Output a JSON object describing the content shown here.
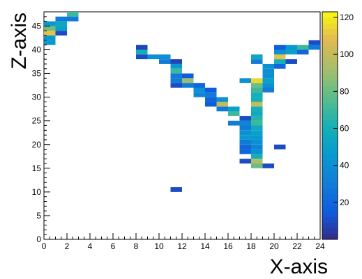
{
  "chart_data": {
    "type": "heatmap",
    "xlabel": "X-axis",
    "ylabel": "Z-axis",
    "x_range": [
      0,
      24
    ],
    "y_range": [
      0,
      48
    ],
    "x_bin_width": 1,
    "y_bin_width": 1,
    "x_ticks": [
      0,
      2,
      4,
      6,
      8,
      10,
      12,
      14,
      16,
      18,
      20,
      22,
      24
    ],
    "y_ticks": [
      0,
      5,
      10,
      15,
      20,
      25,
      30,
      35,
      40,
      45
    ],
    "colorbar": {
      "range": [
        0,
        123
      ],
      "ticks": [
        20,
        40,
        60,
        80,
        100,
        120
      ],
      "palette": "parula"
    },
    "grid": false,
    "cells": [
      {
        "x": 2,
        "z": 47,
        "v": 70
      },
      {
        "x": 1,
        "z": 46,
        "v": 30
      },
      {
        "x": 2,
        "z": 46,
        "v": 30
      },
      {
        "x": 0,
        "z": 45,
        "v": 45
      },
      {
        "x": 1,
        "z": 45,
        "v": 55
      },
      {
        "x": 0,
        "z": 44,
        "v": 80
      },
      {
        "x": 1,
        "z": 44,
        "v": 50
      },
      {
        "x": 0,
        "z": 43,
        "v": 110
      },
      {
        "x": 1,
        "z": 43,
        "v": 10
      },
      {
        "x": 0,
        "z": 42,
        "v": 45
      },
      {
        "x": 0,
        "z": 41,
        "v": 45
      },
      {
        "x": 8,
        "z": 40,
        "v": 8
      },
      {
        "x": 8,
        "z": 39,
        "v": 60
      },
      {
        "x": 8,
        "z": 38,
        "v": 10
      },
      {
        "x": 9,
        "z": 38,
        "v": 40
      },
      {
        "x": 10,
        "z": 38,
        "v": 40
      },
      {
        "x": 10,
        "z": 37,
        "v": 30
      },
      {
        "x": 11,
        "z": 37,
        "v": 8
      },
      {
        "x": 11,
        "z": 36,
        "v": 45
      },
      {
        "x": 11,
        "z": 35,
        "v": 70
      },
      {
        "x": 11,
        "z": 34,
        "v": 30
      },
      {
        "x": 12,
        "z": 34,
        "v": 15
      },
      {
        "x": 11,
        "z": 33,
        "v": 30
      },
      {
        "x": 12,
        "z": 33,
        "v": 90
      },
      {
        "x": 11,
        "z": 32,
        "v": 10
      },
      {
        "x": 12,
        "z": 32,
        "v": 30
      },
      {
        "x": 13,
        "z": 32,
        "v": 20
      },
      {
        "x": 13,
        "z": 31,
        "v": 40
      },
      {
        "x": 14,
        "z": 31,
        "v": 15
      },
      {
        "x": 13,
        "z": 30,
        "v": 35
      },
      {
        "x": 14,
        "z": 30,
        "v": 30
      },
      {
        "x": 14,
        "z": 29,
        "v": 20
      },
      {
        "x": 15,
        "z": 29,
        "v": 40
      },
      {
        "x": 14,
        "z": 28,
        "v": 15
      },
      {
        "x": 15,
        "z": 28,
        "v": 100
      },
      {
        "x": 15,
        "z": 27,
        "v": 30
      },
      {
        "x": 16,
        "z": 27,
        "v": 50
      },
      {
        "x": 16,
        "z": 26,
        "v": 70
      },
      {
        "x": 17,
        "z": 25,
        "v": 10
      },
      {
        "x": 16,
        "z": 24,
        "v": 30
      },
      {
        "x": 17,
        "z": 24,
        "v": 35
      },
      {
        "x": 17,
        "z": 23,
        "v": 30
      },
      {
        "x": 17,
        "z": 22,
        "v": 40
      },
      {
        "x": 17,
        "z": 21,
        "v": 45
      },
      {
        "x": 17,
        "z": 20,
        "v": 30
      },
      {
        "x": 17,
        "z": 19,
        "v": 20
      },
      {
        "x": 17,
        "z": 18,
        "v": 20
      },
      {
        "x": 17,
        "z": 16,
        "v": 10
      },
      {
        "x": 18,
        "z": 38,
        "v": 55
      },
      {
        "x": 18,
        "z": 37,
        "v": 30
      },
      {
        "x": 17,
        "z": 33,
        "v": 40
      },
      {
        "x": 18,
        "z": 33,
        "v": 115
      },
      {
        "x": 18,
        "z": 32,
        "v": 80
      },
      {
        "x": 18,
        "z": 31,
        "v": 70
      },
      {
        "x": 18,
        "z": 30,
        "v": 60
      },
      {
        "x": 18,
        "z": 29,
        "v": 60
      },
      {
        "x": 18,
        "z": 28,
        "v": 100
      },
      {
        "x": 18,
        "z": 27,
        "v": 60
      },
      {
        "x": 18,
        "z": 26,
        "v": 55
      },
      {
        "x": 18,
        "z": 25,
        "v": 65
      },
      {
        "x": 18,
        "z": 24,
        "v": 70
      },
      {
        "x": 18,
        "z": 23,
        "v": 55
      },
      {
        "x": 18,
        "z": 22,
        "v": 50
      },
      {
        "x": 18,
        "z": 21,
        "v": 45
      },
      {
        "x": 18,
        "z": 20,
        "v": 40
      },
      {
        "x": 18,
        "z": 19,
        "v": 35
      },
      {
        "x": 18,
        "z": 18,
        "v": 40
      },
      {
        "x": 18,
        "z": 17,
        "v": 60
      },
      {
        "x": 18,
        "z": 16,
        "v": 95
      },
      {
        "x": 18,
        "z": 15,
        "v": 80
      },
      {
        "x": 19,
        "z": 15,
        "v": 10
      },
      {
        "x": 19,
        "z": 34,
        "v": 40
      },
      {
        "x": 19,
        "z": 33,
        "v": 50
      },
      {
        "x": 19,
        "z": 32,
        "v": 40
      },
      {
        "x": 19,
        "z": 31,
        "v": 30
      },
      {
        "x": 19,
        "z": 36,
        "v": 40
      },
      {
        "x": 19,
        "z": 35,
        "v": 40
      },
      {
        "x": 20,
        "z": 37,
        "v": 60
      },
      {
        "x": 20,
        "z": 36,
        "v": 20
      },
      {
        "x": 20,
        "z": 38,
        "v": 110
      },
      {
        "x": 21,
        "z": 37,
        "v": 10
      },
      {
        "x": 20,
        "z": 39,
        "v": 40
      },
      {
        "x": 21,
        "z": 39,
        "v": 50
      },
      {
        "x": 20,
        "z": 40,
        "v": 15
      },
      {
        "x": 21,
        "z": 40,
        "v": 45
      },
      {
        "x": 22,
        "z": 40,
        "v": 70
      },
      {
        "x": 22,
        "z": 39,
        "v": 20
      },
      {
        "x": 23,
        "z": 40,
        "v": 30
      },
      {
        "x": 23,
        "z": 41,
        "v": 10
      },
      {
        "x": 20,
        "z": 19,
        "v": 10
      },
      {
        "x": 11,
        "z": 10,
        "v": 10
      }
    ]
  }
}
